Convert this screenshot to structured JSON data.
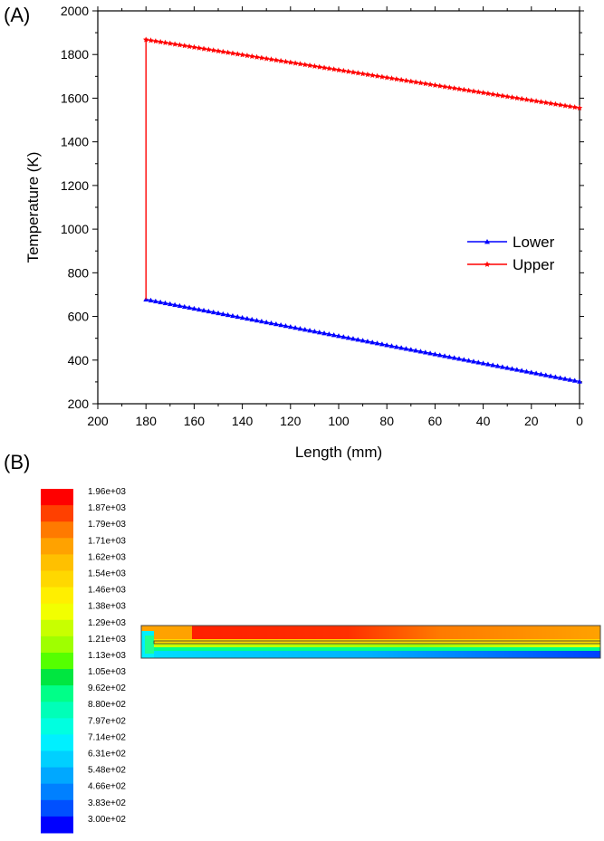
{
  "panel_a": {
    "label": "(A)"
  },
  "panel_b": {
    "label": "(B)",
    "colorbar_labels": [
      "1.96e+03",
      "1.87e+03",
      "1.79e+03",
      "1.71e+03",
      "1.62e+03",
      "1.54e+03",
      "1.46e+03",
      "1.38e+03",
      "1.29e+03",
      "1.21e+03",
      "1.13e+03",
      "1.05e+03",
      "9.62e+02",
      "8.80e+02",
      "7.97e+02",
      "7.14e+02",
      "6.31e+02",
      "5.48e+02",
      "4.66e+02",
      "3.83e+02",
      "3.00e+02"
    ],
    "colorbar_colors": [
      "#ff0000",
      "#ff4000",
      "#ff7a00",
      "#ffa200",
      "#ffc000",
      "#ffd800",
      "#ffef00",
      "#f2ff00",
      "#c8ff00",
      "#9fff00",
      "#55ff00",
      "#00e640",
      "#00ff88",
      "#00ffb8",
      "#00ffe0",
      "#00f0ff",
      "#00d0ff",
      "#00a8ff",
      "#0080ff",
      "#0050ff",
      "#0000ff"
    ]
  },
  "chart_data": {
    "type": "line",
    "title": "",
    "xlabel": "Length (mm)",
    "ylabel": "Temperature (K)",
    "xlim": [
      200,
      0
    ],
    "ylim": [
      200,
      2000
    ],
    "x_ticks": [
      "200",
      "180",
      "160",
      "140",
      "120",
      "100",
      "80",
      "60",
      "40",
      "20",
      "0"
    ],
    "y_ticks": [
      "200",
      "400",
      "600",
      "800",
      "1000",
      "1200",
      "1400",
      "1600",
      "1800",
      "2000"
    ],
    "legend_position": "right-middle",
    "series": [
      {
        "name": "Lower",
        "color": "#0000ff",
        "marker": "triangle",
        "x": [
          180,
          0
        ],
        "y": [
          678,
          302
        ]
      },
      {
        "name": "Upper",
        "color": "#ff0000",
        "marker": "star",
        "x": [
          180,
          180,
          0
        ],
        "y": [
          678,
          1868,
          1555
        ]
      }
    ]
  }
}
